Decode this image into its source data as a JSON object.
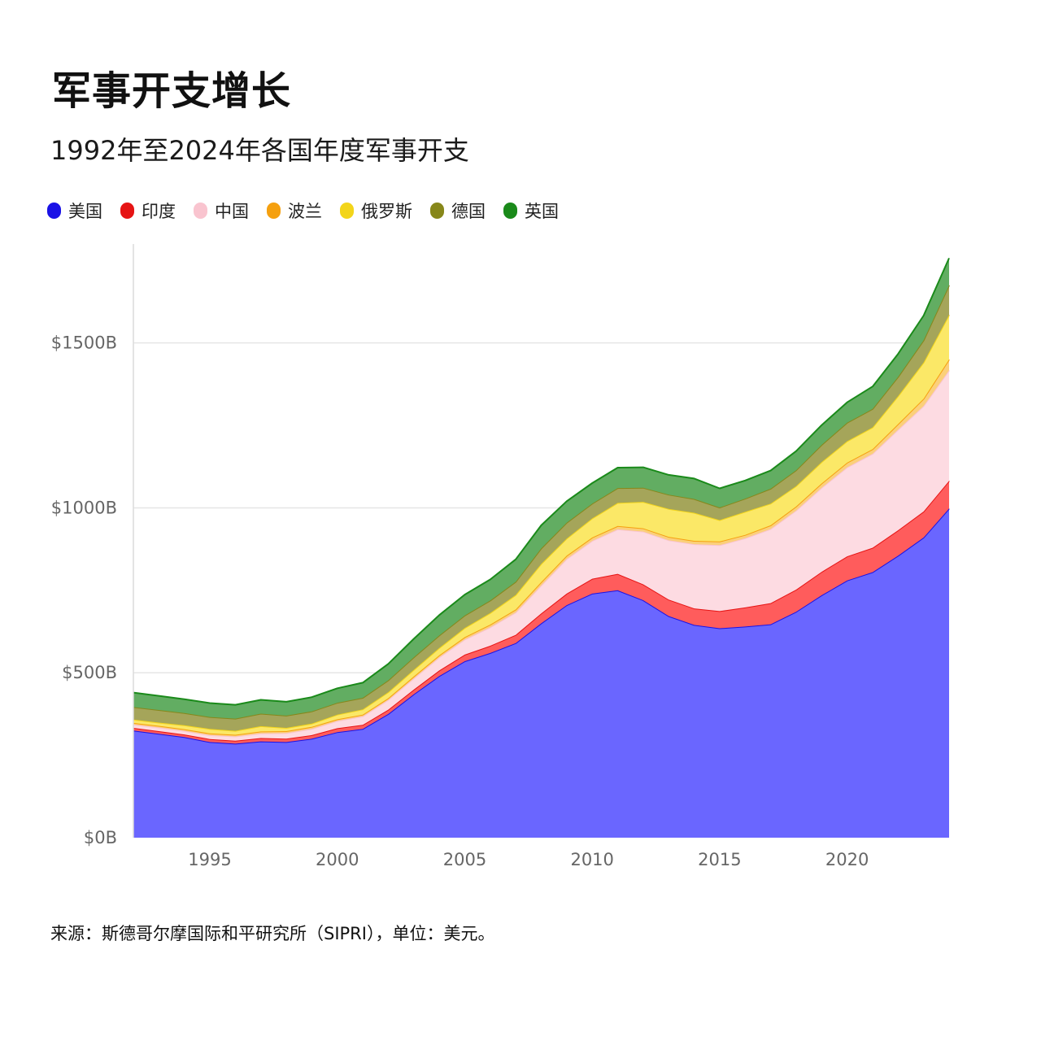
{
  "title": "军事开支增长",
  "subtitle": "1992年至2024年各国年度军事开支",
  "source": "来源：斯德哥尔摩国际和平研究所（SIPRI），单位：美元。",
  "legend": [
    {
      "name": "美国",
      "color": "#1a12e6"
    },
    {
      "name": "印度",
      "color": "#e61414"
    },
    {
      "name": "中国",
      "color": "#f9c4cf"
    },
    {
      "name": "波兰",
      "color": "#f5a00f"
    },
    {
      "name": "俄罗斯",
      "color": "#f3d51a"
    },
    {
      "name": "德国",
      "color": "#87871a"
    },
    {
      "name": "英国",
      "color": "#1a8a1a"
    }
  ],
  "chart_data": {
    "type": "area",
    "stacked": true,
    "x": [
      1992,
      1993,
      1994,
      1995,
      1996,
      1997,
      1998,
      1999,
      2000,
      2001,
      2002,
      2003,
      2004,
      2005,
      2006,
      2007,
      2008,
      2009,
      2010,
      2011,
      2012,
      2013,
      2014,
      2015,
      2016,
      2017,
      2018,
      2019,
      2020,
      2021,
      2022,
      2023,
      2024
    ],
    "x_ticks": [
      "1995",
      "2000",
      "2005",
      "2010",
      "2015",
      "2020"
    ],
    "y_ticks": [
      "$0B",
      "$500B",
      "$1000B",
      "$1500B"
    ],
    "ylim": [
      0,
      1800
    ],
    "xlim": [
      1992,
      2024
    ],
    "grid": true,
    "series": [
      {
        "name": "美国",
        "color": "#6a66ff",
        "line": "#1a12e6",
        "values": [
          325,
          315,
          305,
          290,
          285,
          292,
          290,
          300,
          320,
          330,
          375,
          435,
          490,
          535,
          560,
          590,
          650,
          705,
          740,
          750,
          720,
          672,
          645,
          635,
          640,
          647,
          685,
          735,
          780,
          805,
          855,
          910,
          998
        ]
      },
      {
        "name": "印度",
        "color": "#ff5c5c",
        "line": "#e61414",
        "values": [
          8,
          8,
          8,
          9,
          9,
          10,
          10,
          11,
          12,
          12,
          13,
          14,
          17,
          20,
          22,
          25,
          30,
          35,
          45,
          50,
          48,
          50,
          50,
          52,
          58,
          64,
          67,
          71,
          73,
          74,
          77,
          79,
          84
        ]
      },
      {
        "name": "中国",
        "color": "#fddbe2",
        "line": "#f9c4cf",
        "values": [
          10,
          11,
          11,
          12,
          13,
          14,
          17,
          19,
          22,
          26,
          30,
          34,
          40,
          46,
          56,
          68,
          85,
          105,
          115,
          135,
          160,
          180,
          195,
          200,
          210,
          225,
          240,
          255,
          270,
          285,
          305,
          320,
          335
        ]
      },
      {
        "name": "波兰",
        "color": "#fbd07a",
        "line": "#f5a00f",
        "values": [
          5,
          5,
          5,
          5,
          5,
          6,
          6,
          6,
          5,
          5,
          5,
          6,
          6,
          7,
          8,
          9,
          10,
          10,
          10,
          10,
          10,
          10,
          10,
          11,
          10,
          11,
          12,
          13,
          14,
          14,
          17,
          22,
          33
        ]
      },
      {
        "name": "俄罗斯",
        "color": "#fbe867",
        "line": "#f3d51a",
        "values": [
          10,
          10,
          12,
          14,
          12,
          16,
          10,
          10,
          14,
          16,
          18,
          20,
          22,
          28,
          35,
          44,
          55,
          52,
          58,
          70,
          80,
          85,
          85,
          65,
          70,
          66,
          62,
          65,
          65,
          66,
          85,
          110,
          135
        ]
      },
      {
        "name": "德国",
        "color": "#a5a55a",
        "line": "#87871a",
        "values": [
          38,
          38,
          37,
          36,
          37,
          38,
          37,
          37,
          36,
          35,
          36,
          38,
          38,
          38,
          38,
          40,
          47,
          48,
          45,
          45,
          43,
          43,
          42,
          38,
          40,
          45,
          48,
          52,
          56,
          56,
          58,
          67,
          90
        ]
      },
      {
        "name": "英国",
        "color": "#62ad62",
        "line": "#1a8a1a",
        "values": [
          44,
          43,
          42,
          42,
          42,
          42,
          42,
          43,
          44,
          46,
          50,
          56,
          62,
          63,
          64,
          68,
          70,
          65,
          62,
          62,
          62,
          60,
          62,
          58,
          55,
          55,
          58,
          60,
          62,
          68,
          70,
          75,
          82
        ]
      }
    ]
  }
}
